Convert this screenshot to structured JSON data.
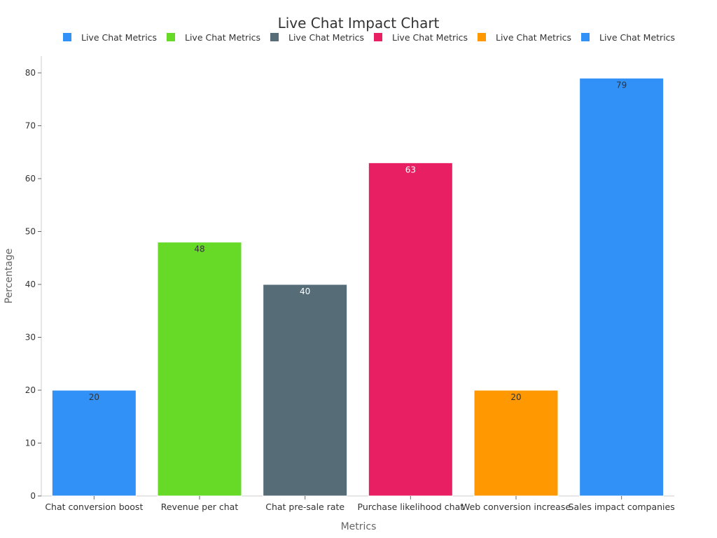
{
  "chart_data": {
    "type": "bar",
    "title": "Live Chat Impact Chart",
    "xlabel": "Metrics",
    "ylabel": "Percentage",
    "categories": [
      "Chat conversion boost",
      "Revenue per chat",
      "Chat pre-sale rate",
      "Purchase likelihood chat",
      "Web conversion increase",
      "Sales impact companies"
    ],
    "values": [
      20,
      48,
      40,
      63,
      20,
      79
    ],
    "colors": [
      "#3191F7",
      "#67DA28",
      "#566D78",
      "#E91F63",
      "#FF9801",
      "#3191F7"
    ],
    "label_colors": [
      "#333333",
      "#333333",
      "#ffffff",
      "#ffffff",
      "#333333",
      "#333333"
    ],
    "legend": [
      {
        "label": "Live Chat Metrics",
        "color": "#3191F7"
      },
      {
        "label": "Live Chat Metrics",
        "color": "#67DA28"
      },
      {
        "label": "Live Chat Metrics",
        "color": "#566D78"
      },
      {
        "label": "Live Chat Metrics",
        "color": "#E91F63"
      },
      {
        "label": "Live Chat Metrics",
        "color": "#FF9801"
      },
      {
        "label": "Live Chat Metrics",
        "color": "#3191F7"
      }
    ],
    "legend_position": "top",
    "ylim": [
      0,
      80
    ],
    "yticks": [
      0,
      10,
      20,
      30,
      40,
      50,
      60,
      70,
      80
    ],
    "grid": false
  }
}
